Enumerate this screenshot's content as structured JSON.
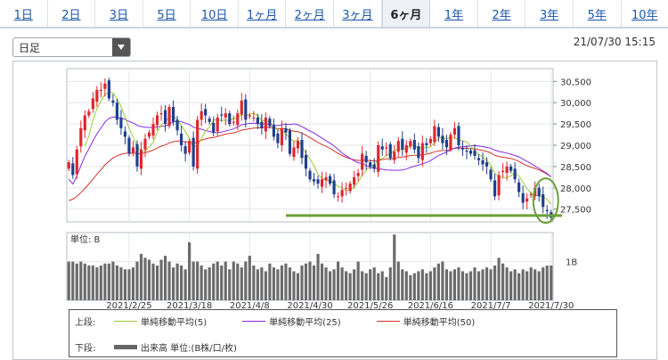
{
  "tabs": [
    {
      "label": "1日",
      "active": false
    },
    {
      "label": "2日",
      "active": false
    },
    {
      "label": "3日",
      "active": false
    },
    {
      "label": "5日",
      "active": false
    },
    {
      "label": "10日",
      "active": false
    },
    {
      "label": "1ヶ月",
      "active": false
    },
    {
      "label": "2ヶ月",
      "active": false
    },
    {
      "label": "3ヶ月",
      "active": false
    },
    {
      "label": "6ヶ月",
      "active": true
    },
    {
      "label": "1年",
      "active": false
    },
    {
      "label": "2年",
      "active": false
    },
    {
      "label": "3年",
      "active": false
    },
    {
      "label": "5年",
      "active": false
    },
    {
      "label": "10年",
      "active": false
    }
  ],
  "period_select": {
    "value": "日足"
  },
  "timestamp": "21/07/30 15:15",
  "volume_unit_label": "単位: B",
  "legend": {
    "upper_label": "上段:",
    "lower_label": "下段:",
    "upper_items": [
      {
        "label": "単純移動平均(5)",
        "color": "#9acd32"
      },
      {
        "label": "単純移動平均(25)",
        "color": "#8a2be2"
      },
      {
        "label": "単純移動平均(50)",
        "color": "#d2332a"
      }
    ],
    "lower_items": [
      {
        "label": "出来高 単位:(B株/口/枚)",
        "color": "#666666"
      }
    ]
  },
  "colors": {
    "up": "#e0262d",
    "down": "#1f3f8c",
    "annotation": "#6aa13a"
  },
  "chart_data": {
    "type": "candlestick",
    "price_axis": {
      "ticks": [
        27500,
        28000,
        28500,
        29000,
        29500,
        30000,
        30500
      ],
      "ylim": [
        27200,
        30800
      ]
    },
    "volume_axis": {
      "ticks": [
        {
          "value": 1,
          "label": "1B"
        }
      ],
      "ylim": [
        0,
        1.75
      ]
    },
    "x_tick_labels": [
      {
        "index": 15,
        "label": "2021/2/25"
      },
      {
        "index": 30,
        "label": "2021/3/18"
      },
      {
        "index": 45,
        "label": "2021/4/8"
      },
      {
        "index": 60,
        "label": "2021/4/30"
      },
      {
        "index": 75,
        "label": "2021/5/26"
      },
      {
        "index": 90,
        "label": "2021/6/16"
      },
      {
        "index": 105,
        "label": "2021/7/7"
      },
      {
        "index": 120,
        "label": "2021/7/30"
      }
    ],
    "close": [
      28600,
      28300,
      28900,
      29400,
      29700,
      29800,
      30100,
      30300,
      30300,
      30450,
      30100,
      30000,
      29600,
      29400,
      29200,
      28800,
      28950,
      28500,
      28900,
      29150,
      29300,
      29500,
      29700,
      29750,
      29500,
      29900,
      29550,
      29350,
      29000,
      28800,
      29100,
      28500,
      29600,
      29800,
      29700,
      29550,
      29300,
      29650,
      29700,
      29750,
      29500,
      29550,
      29750,
      30050,
      29600,
      29700,
      29650,
      29500,
      29400,
      29650,
      29450,
      29200,
      29050,
      29400,
      29300,
      28800,
      28950,
      29100,
      28700,
      28450,
      28200,
      28150,
      28100,
      28200,
      28250,
      28100,
      27850,
      27800,
      27950,
      28000,
      28100,
      28250,
      28350,
      28800,
      28600,
      28500,
      28450,
      29000,
      28900,
      28950,
      28700,
      28850,
      29100,
      28900,
      29000,
      29100,
      28900,
      28700,
      29050,
      29000,
      29150,
      29450,
      29200,
      29050,
      28950,
      29250,
      29400,
      29000,
      28900,
      28850,
      28800,
      28750,
      28650,
      28550,
      28500,
      28200,
      27800,
      28300,
      28400,
      28500,
      28400,
      28200,
      27900,
      27650,
      27750,
      27850,
      28000,
      27800,
      27550,
      27450,
      27300
    ],
    "volume": [
      1.0,
      1.0,
      0.95,
      1.0,
      0.95,
      0.9,
      0.9,
      0.85,
      0.9,
      0.95,
      0.95,
      1.0,
      0.9,
      0.85,
      0.8,
      0.8,
      0.85,
      1.0,
      1.2,
      1.1,
      1.05,
      0.95,
      0.9,
      1.05,
      1.15,
      1.0,
      0.85,
      0.95,
      0.9,
      0.8,
      1.5,
      1.0,
      1.0,
      0.9,
      0.8,
      0.85,
      0.95,
      1.0,
      0.9,
      1.0,
      0.8,
      1.0,
      0.95,
      0.85,
      1.0,
      1.15,
      0.9,
      0.8,
      0.85,
      0.75,
      0.95,
      0.85,
      0.8,
      0.9,
      0.95,
      0.85,
      0.75,
      0.7,
      0.9,
      0.95,
      1.0,
      0.9,
      1.2,
      0.95,
      0.85,
      0.75,
      0.8,
      1.0,
      0.85,
      0.75,
      0.7,
      0.8,
      1.0,
      0.75,
      0.7,
      0.8,
      0.85,
      0.7,
      0.75,
      0.6,
      0.85,
      1.7,
      1.0,
      0.8,
      0.75,
      0.65,
      0.7,
      0.75,
      0.8,
      0.7,
      0.75,
      0.85,
      0.95,
      1.0,
      0.8,
      0.75,
      0.8,
      0.85,
      0.75,
      0.7,
      0.75,
      0.85,
      0.75,
      0.8,
      0.85,
      0.8,
      0.9,
      1.1,
      0.95,
      0.85,
      0.75,
      0.8,
      0.7,
      0.8,
      0.75,
      0.85,
      0.8,
      0.75,
      0.85,
      0.9,
      0.9
    ],
    "annotations": {
      "support_line": 27350
    }
  }
}
